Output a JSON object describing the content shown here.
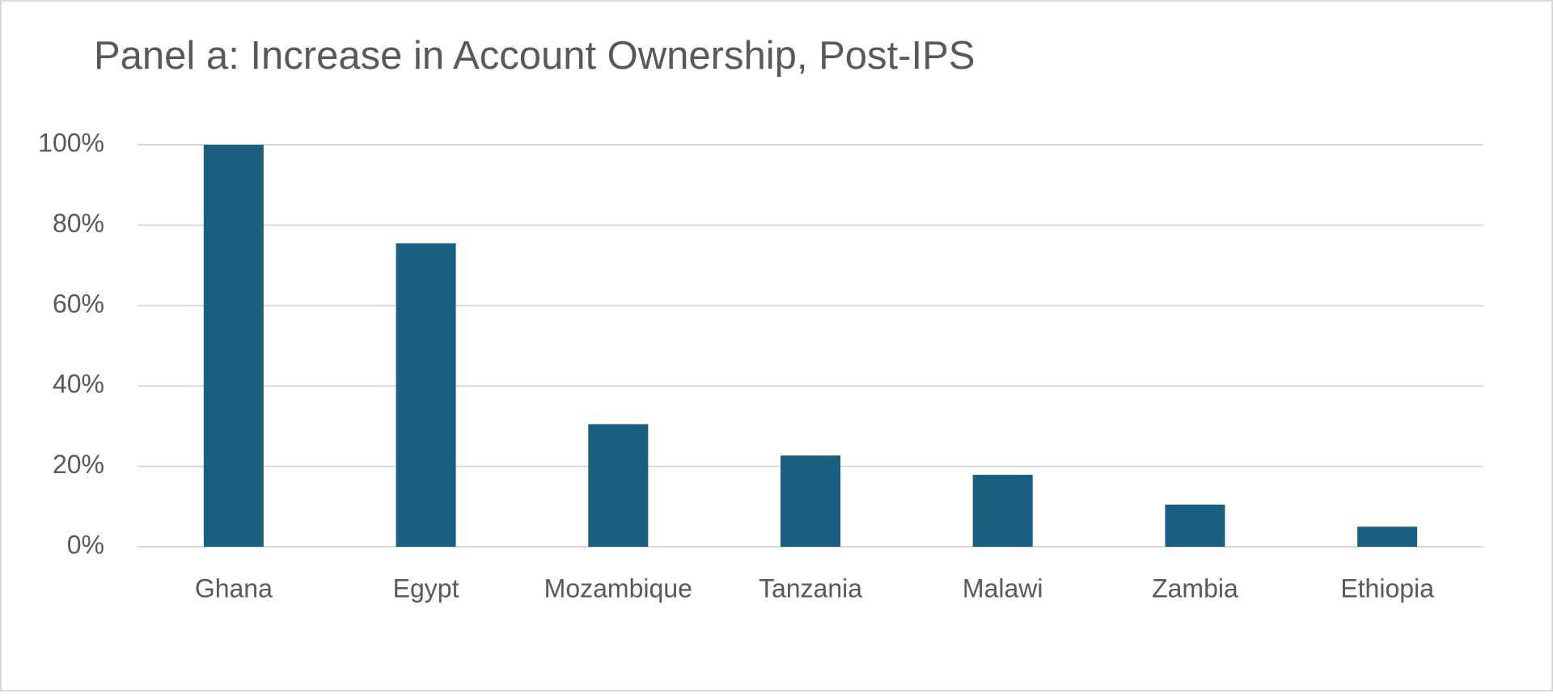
{
  "chart_data": {
    "type": "bar",
    "title": "Panel a: Increase in Account Ownership, Post-IPS",
    "categories": [
      "Ghana",
      "Egypt",
      "Mozambique",
      "Tanzania",
      "Malawi",
      "Zambia",
      "Ethiopia"
    ],
    "values": [
      100,
      75.5,
      30.5,
      22.7,
      17.9,
      10.5,
      5
    ],
    "color": "#1a5e80",
    "ylim": [
      0,
      100
    ],
    "yticks": [
      {
        "value": 0,
        "label": "0%"
      },
      {
        "value": 20,
        "label": "20%"
      },
      {
        "value": 40,
        "label": "40%"
      },
      {
        "value": 60,
        "label": "60%"
      },
      {
        "value": 80,
        "label": "80%"
      },
      {
        "value": 100,
        "label": "100%"
      }
    ],
    "grid": true
  }
}
